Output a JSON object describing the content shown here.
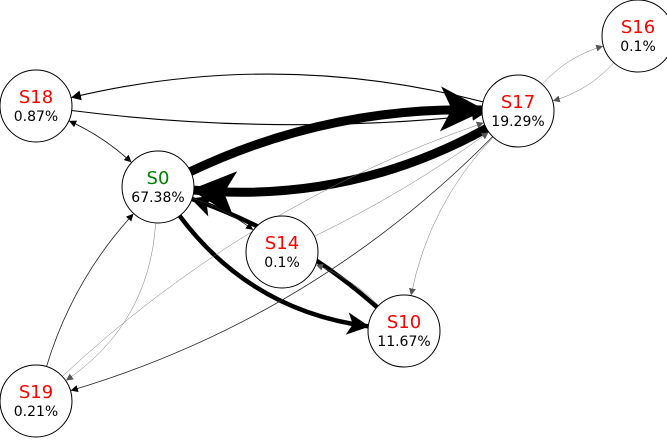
{
  "colors": {
    "initial_state": "#008000",
    "state": "#ff0000",
    "probability": "#000000",
    "edge": "#000000",
    "node_fill": "#ffffff"
  },
  "nodes": [
    {
      "id": "S0",
      "label": "S0",
      "probability": "67.38%",
      "initial": true
    },
    {
      "id": "S10",
      "label": "S10",
      "probability": "11.67%",
      "initial": false
    },
    {
      "id": "S14",
      "label": "S14",
      "probability": "0.1%",
      "initial": false
    },
    {
      "id": "S16",
      "label": "S16",
      "probability": "0.1%",
      "initial": false
    },
    {
      "id": "S17",
      "label": "S17",
      "probability": "19.29%",
      "initial": false
    },
    {
      "id": "S18",
      "label": "S18",
      "probability": "0.87%",
      "initial": false
    },
    {
      "id": "S19",
      "label": "S19",
      "probability": "0.21%",
      "initial": false
    }
  ],
  "edges": [
    {
      "from": "S17",
      "to": "S0",
      "weight": "heavy"
    },
    {
      "from": "S0",
      "to": "S17",
      "weight": "heavy"
    },
    {
      "from": "S0",
      "to": "S10",
      "weight": "strong"
    },
    {
      "from": "S10",
      "to": "S0",
      "weight": "strong"
    },
    {
      "from": "S17",
      "to": "S18",
      "weight": "normal"
    },
    {
      "from": "S18",
      "to": "S17",
      "weight": "normal"
    },
    {
      "from": "S18",
      "to": "S0",
      "weight": "thin"
    },
    {
      "from": "S0",
      "to": "S18",
      "weight": "thin"
    },
    {
      "from": "S0",
      "to": "S14",
      "weight": "thin"
    },
    {
      "from": "S10",
      "to": "S14",
      "weight": "faint"
    },
    {
      "from": "S17",
      "to": "S16",
      "weight": "faint"
    },
    {
      "from": "S16",
      "to": "S17",
      "weight": "faint"
    },
    {
      "from": "S17",
      "to": "S10",
      "weight": "faint"
    },
    {
      "from": "S19",
      "to": "S17",
      "weight": "faint"
    },
    {
      "from": "S17",
      "to": "S19",
      "weight": "thin"
    },
    {
      "from": "S0",
      "to": "S19",
      "weight": "faint"
    },
    {
      "from": "S19",
      "to": "S0",
      "weight": "thin"
    },
    {
      "from": "S14",
      "to": "S17",
      "weight": "faint"
    }
  ]
}
